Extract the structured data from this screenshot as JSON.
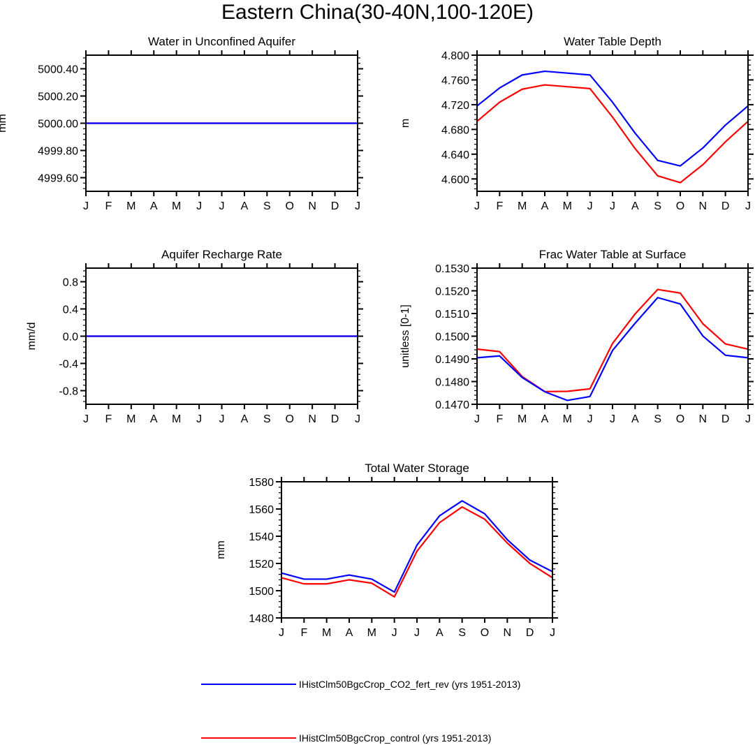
{
  "figure_title": "Eastern China(30-40N,100-120E)",
  "colors": {
    "series1": "#0000ff",
    "series2": "#ff0000",
    "axis": "#000000"
  },
  "legend": [
    {
      "label": "IHistClm50BgcCrop_CO2_fert_rev (yrs 1951-2013)",
      "color": "#0000ff"
    },
    {
      "label": "IHistClm50BgcCrop_control (yrs 1951-2013)",
      "color": "#ff0000"
    }
  ],
  "chart_data": [
    {
      "type": "line",
      "title": "Water in Unconfined Aquifer",
      "xlabel": "",
      "ylabel": "mm",
      "categories": [
        "J",
        "F",
        "M",
        "A",
        "M",
        "J",
        "J",
        "A",
        "S",
        "O",
        "N",
        "D",
        "J"
      ],
      "ylim": [
        4999.5,
        5000.5
      ],
      "yticks": [
        4999.6,
        4999.8,
        5000.0,
        5000.2,
        5000.4
      ],
      "ytick_labels": [
        "4999.60",
        "4999.80",
        "5000.00",
        "5000.20",
        "5000.40"
      ],
      "yminor": 0.04,
      "series": [
        {
          "name": "IHistClm50BgcCrop_control (yrs 1951-2013)",
          "color": "#ff0000",
          "values": [
            5000,
            5000,
            5000,
            5000,
            5000,
            5000,
            5000,
            5000,
            5000,
            5000,
            5000,
            5000,
            5000
          ]
        },
        {
          "name": "IHistClm50BgcCrop_CO2_fert_rev (yrs 1951-2013)",
          "color": "#0000ff",
          "values": [
            5000,
            5000,
            5000,
            5000,
            5000,
            5000,
            5000,
            5000,
            5000,
            5000,
            5000,
            5000,
            5000
          ]
        }
      ]
    },
    {
      "type": "line",
      "title": "Water Table Depth",
      "xlabel": "",
      "ylabel": "m",
      "categories": [
        "J",
        "F",
        "M",
        "A",
        "M",
        "J",
        "J",
        "A",
        "S",
        "O",
        "N",
        "D",
        "J"
      ],
      "ylim": [
        4.58,
        4.8
      ],
      "yticks": [
        4.6,
        4.64,
        4.68,
        4.72,
        4.76,
        4.8
      ],
      "ytick_labels": [
        "4.600",
        "4.640",
        "4.680",
        "4.720",
        "4.760",
        "4.800"
      ],
      "yminor": 0.008,
      "series": [
        {
          "name": "IHistClm50BgcCrop_control (yrs 1951-2013)",
          "color": "#ff0000",
          "values": [
            4.693,
            4.724,
            4.745,
            4.752,
            4.749,
            4.746,
            4.7,
            4.649,
            4.605,
            4.594,
            4.623,
            4.66,
            4.693
          ]
        },
        {
          "name": "IHistClm50BgcCrop_CO2_fert_rev (yrs 1951-2013)",
          "color": "#0000ff",
          "values": [
            4.718,
            4.747,
            4.768,
            4.774,
            4.771,
            4.768,
            4.724,
            4.674,
            4.63,
            4.621,
            4.65,
            4.687,
            4.718
          ]
        }
      ]
    },
    {
      "type": "line",
      "title": "Aquifer Recharge Rate",
      "xlabel": "",
      "ylabel": "mm/d",
      "categories": [
        "J",
        "F",
        "M",
        "A",
        "M",
        "J",
        "J",
        "A",
        "S",
        "O",
        "N",
        "D",
        "J"
      ],
      "ylim": [
        -1,
        1
      ],
      "yticks": [
        -0.8,
        -0.4,
        0.0,
        0.4,
        0.8
      ],
      "ytick_labels": [
        "-0.8",
        "-0.4",
        "0.0",
        "0.4",
        "0.8"
      ],
      "yminor": 0.08,
      "series": [
        {
          "name": "IHistClm50BgcCrop_control (yrs 1951-2013)",
          "color": "#ff0000",
          "values": [
            0,
            0,
            0,
            0,
            0,
            0,
            0,
            0,
            0,
            0,
            0,
            0,
            0
          ]
        },
        {
          "name": "IHistClm50BgcCrop_CO2_fert_rev (yrs 1951-2013)",
          "color": "#0000ff",
          "values": [
            0,
            0,
            0,
            0,
            0,
            0,
            0,
            0,
            0,
            0,
            0,
            0,
            0
          ]
        }
      ]
    },
    {
      "type": "line",
      "title": "Frac Water Table at Surface",
      "xlabel": "",
      "ylabel": "unitless [0-1]",
      "categories": [
        "J",
        "F",
        "M",
        "A",
        "M",
        "J",
        "J",
        "A",
        "S",
        "O",
        "N",
        "D",
        "J"
      ],
      "ylim": [
        0.147,
        0.153
      ],
      "yticks": [
        0.147,
        0.148,
        0.149,
        0.15,
        0.151,
        0.152,
        0.153
      ],
      "ytick_labels": [
        "0.1470",
        "0.1480",
        "0.1490",
        "0.1500",
        "0.1510",
        "0.1520",
        "0.1530"
      ],
      "yminor": 0.0002,
      "series": [
        {
          "name": "IHistClm50BgcCrop_control (yrs 1951-2013)",
          "color": "#ff0000",
          "values": [
            0.14943,
            0.14932,
            0.14822,
            0.14756,
            0.14757,
            0.14768,
            0.14968,
            0.15098,
            0.15206,
            0.1519,
            0.15055,
            0.14966,
            0.14943
          ]
        },
        {
          "name": "IHistClm50BgcCrop_CO2_fert_rev (yrs 1951-2013)",
          "color": "#0000ff",
          "values": [
            0.14905,
            0.14913,
            0.14818,
            0.14755,
            0.14717,
            0.14734,
            0.14937,
            0.15057,
            0.1517,
            0.15142,
            0.15001,
            0.14916,
            0.14905
          ]
        }
      ]
    },
    {
      "type": "line",
      "title": "Total Water Storage",
      "xlabel": "",
      "ylabel": "mm",
      "categories": [
        "J",
        "F",
        "M",
        "A",
        "M",
        "J",
        "J",
        "A",
        "S",
        "O",
        "N",
        "D",
        "J"
      ],
      "ylim": [
        1480,
        1580
      ],
      "yticks": [
        1480,
        1500,
        1520,
        1540,
        1560,
        1580
      ],
      "ytick_labels": [
        "1480",
        "1500",
        "1520",
        "1540",
        "1560",
        "1580"
      ],
      "yminor": 4,
      "series": [
        {
          "name": "IHistClm50BgcCrop_control (yrs 1951-2013)",
          "color": "#ff0000",
          "values": [
            1509.5,
            1505.0,
            1505.0,
            1508.0,
            1505.5,
            1495.5,
            1529.0,
            1550.0,
            1561.5,
            1552.5,
            1535.0,
            1520.0,
            1509.5
          ]
        },
        {
          "name": "IHistClm50BgcCrop_CO2_fert_rev (yrs 1951-2013)",
          "color": "#0000ff",
          "values": [
            1513.0,
            1508.5,
            1508.5,
            1511.5,
            1508.5,
            1499.0,
            1533.5,
            1555.0,
            1566.0,
            1556.5,
            1537.5,
            1522.5,
            1514.0
          ]
        }
      ]
    }
  ]
}
